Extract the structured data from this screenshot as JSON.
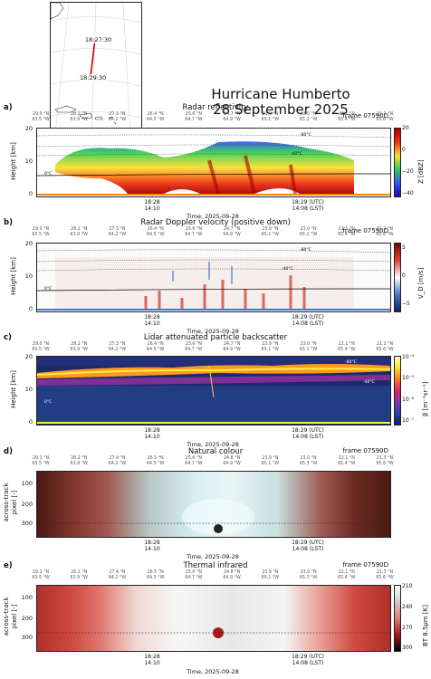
{
  "figure": {
    "title_line1": "Hurricane Humberto",
    "title_line2": "28 September 2025",
    "map": {
      "label_start": "18:27:30",
      "label_end": "18:29:30"
    },
    "frame_label": "frame 07590D",
    "time_caption": "Time, 2025-09-28",
    "time_labels": [
      {
        "utc": "18:28",
        "lst": "14:10"
      },
      {
        "utc": "18:29 (UTC)",
        "lst": "14:08 (LST)"
      }
    ],
    "coords_a": [
      [
        "29.0 °N",
        "63.5 °W"
      ],
      [
        "28.2 °N",
        "63.9 °W"
      ],
      [
        "27.3 °N",
        "64.2 °W"
      ],
      [
        "26.4 °N",
        "64.5 °W"
      ],
      [
        "25.6 °N",
        "64.7 °W"
      ],
      [
        "24.7 °N",
        "64.9 °W"
      ],
      [
        "23.9 °N",
        "65.1 °W"
      ],
      [
        "23.0 °N",
        "65.2 °W"
      ],
      [
        "22.1 °N",
        "65.4 °W"
      ],
      [
        "21.2 °N",
        "65.6 °W"
      ]
    ],
    "coords_d": [
      [
        "29.1 °N",
        "63.5 °W"
      ],
      [
        "28.2 °N",
        "63.9 °W"
      ],
      [
        "27.4 °N",
        "64.2 °W"
      ],
      [
        "26.5 °N",
        "64.5 °W"
      ],
      [
        "25.6 °N",
        "64.7 °W"
      ],
      [
        "24.8 °N",
        "64.9 °W"
      ],
      [
        "23.9 °N",
        "65.1 °W"
      ],
      [
        "23.0 °N",
        "65.3 °W"
      ],
      [
        "22.1 °N",
        "65.4 °W"
      ],
      [
        "21.3 °N",
        "65.6 °W"
      ]
    ]
  },
  "panels": [
    {
      "letter": "a)",
      "title": "Radar reflectivity",
      "ylabel": "Height [km]",
      "cbar_label": "Z [dBZ]",
      "cbar_ticks": [
        "20",
        "0",
        "−20",
        "−40"
      ],
      "iso": [
        "-80°C",
        "-40°C",
        "0°C"
      ]
    },
    {
      "letter": "b)",
      "title": "Radar Doppler velocity (positive down)",
      "ylabel": "Height [km]",
      "cbar_label": "V_D [m/s]",
      "cbar_ticks": [
        "5",
        "0",
        "−5"
      ],
      "iso": [
        "-80°C",
        "-40°C",
        "0°C"
      ]
    },
    {
      "letter": "c)",
      "title": "Lidar attenuated particle backscatter",
      "ylabel": "Height [km]",
      "cbar_label": "β [m⁻¹sr⁻¹]",
      "cbar_ticks": [
        "10⁻⁴",
        "10⁻⁵",
        "10⁻⁶",
        "10⁻⁷"
      ],
      "iso": [
        "-80°C",
        "-40°C",
        "0°C"
      ]
    },
    {
      "letter": "d)",
      "title": "Natural colour",
      "ylabel_line1": "across-track",
      "ylabel_line2": "pixel [-]",
      "yticks": [
        "100",
        "200",
        "300"
      ]
    },
    {
      "letter": "e)",
      "title": "Thermal infrared",
      "ylabel_line1": "across-track",
      "ylabel_line2": "pixel [-]",
      "yticks": [
        "100",
        "200",
        "300"
      ],
      "cbar_label": "BT 8.5μm [K]",
      "cbar_ticks": [
        "210",
        "240",
        "270",
        "300"
      ]
    }
  ],
  "chart_data": [
    {
      "type": "heatmap",
      "title": "Radar reflectivity",
      "ylabel": "Height [km]",
      "ylim": [
        0,
        20
      ],
      "yticks": [
        0,
        10,
        20
      ],
      "colorbar": {
        "label": "Z [dBZ]",
        "range": [
          -40,
          20
        ]
      },
      "contours": [
        "-80°C",
        "-40°C",
        "0°C"
      ]
    },
    {
      "type": "heatmap",
      "title": "Radar Doppler velocity (positive down)",
      "ylabel": "Height [km]",
      "ylim": [
        0,
        20
      ],
      "yticks": [
        0,
        10,
        20
      ],
      "colorbar": {
        "label": "V_D [m/s]",
        "range": [
          -5,
          5
        ]
      },
      "contours": [
        "-80°C",
        "-40°C",
        "0°C"
      ]
    },
    {
      "type": "heatmap",
      "title": "Lidar attenuated particle backscatter",
      "ylabel": "Height [km]",
      "ylim": [
        0,
        20
      ],
      "yticks": [
        0,
        10,
        20
      ],
      "colorbar": {
        "label": "β [m⁻¹sr⁻¹]",
        "range": [
          "10⁻⁷",
          "10⁻⁴"
        ],
        "scale": "log"
      },
      "contours": [
        "-80°C",
        "-40°C",
        "0°C"
      ]
    },
    {
      "type": "heatmap",
      "title": "Natural colour",
      "ylabel": "across-track pixel [-]",
      "yticks": [
        100,
        200,
        300
      ]
    },
    {
      "type": "heatmap",
      "title": "Thermal infrared",
      "ylabel": "across-track pixel [-]",
      "yticks": [
        100,
        200,
        300
      ],
      "colorbar": {
        "label": "BT 8.5μm [K]",
        "range": [
          210,
          300
        ],
        "ticks": [
          210,
          240,
          270,
          300
        ]
      }
    }
  ]
}
